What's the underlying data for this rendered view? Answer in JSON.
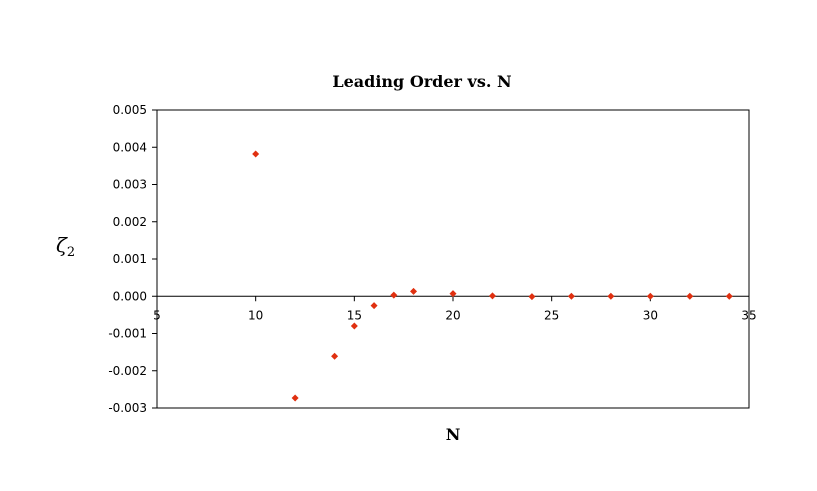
{
  "chart_data": {
    "type": "scatter",
    "title": "Leading Order vs. N",
    "xlabel": "N",
    "ylabel": {
      "main": "ζ",
      "sub": "2"
    },
    "xlim": [
      5,
      35
    ],
    "ylim": [
      -0.003,
      0.005
    ],
    "xticks": [
      "5",
      "10",
      "15",
      "20",
      "25",
      "30",
      "35"
    ],
    "yticks": [
      "0.005",
      "0.004",
      "0.003",
      "0.002",
      "0.001",
      "0.000",
      "-0.001",
      "-0.002",
      "-0.003"
    ],
    "grid": false,
    "legend": "none",
    "marker_color": "#e03010",
    "series": [
      {
        "x": [
          10,
          12,
          14,
          15,
          16,
          17,
          18,
          20,
          22,
          24,
          26,
          28,
          30,
          32,
          34
        ],
        "y": [
          0.00382,
          -0.00273,
          -0.00161,
          -0.0008,
          -0.00025,
          3e-05,
          0.00013,
          7e-05,
          1e-05,
          -1e-05,
          0.0,
          0.0,
          0.0,
          0.0,
          0.0
        ]
      }
    ]
  }
}
